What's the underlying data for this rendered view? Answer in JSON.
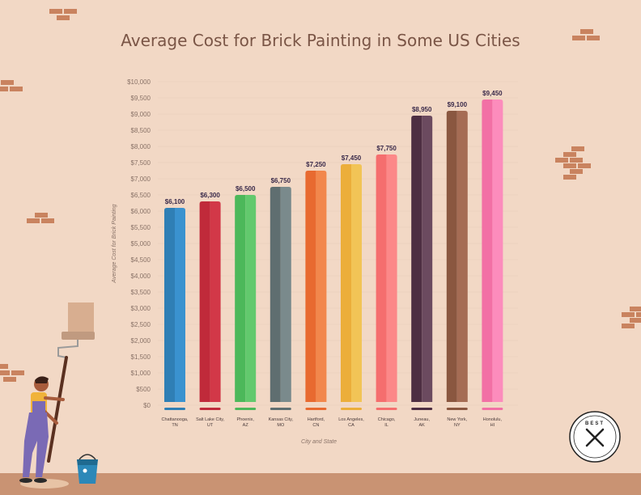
{
  "chart_data": {
    "type": "bar",
    "title": "Average Cost for Brick Painting in Some US Cities",
    "xlabel": "City and State",
    "ylabel": "Average Cost for Brick Painting",
    "ylim": [
      0,
      10000
    ],
    "ytick_step": 500,
    "categories": [
      [
        "Chattanooga,",
        "TN"
      ],
      [
        "Salt Lake City,",
        "UT"
      ],
      [
        "Phoenix,",
        "AZ"
      ],
      [
        "Kansas City,",
        "MO"
      ],
      [
        "Hartford,",
        "CN"
      ],
      [
        "Los Angeles,",
        "CA"
      ],
      [
        "Chicago,",
        "IL"
      ],
      [
        "Juneau,",
        "AK"
      ],
      [
        "New York,",
        "NY"
      ],
      [
        "Honolulu,",
        "HI"
      ]
    ],
    "values": [
      6100,
      6300,
      6500,
      6750,
      7250,
      7450,
      7750,
      8950,
      9100,
      9450
    ],
    "value_labels": [
      "$6,100",
      "$6,300",
      "$6,500",
      "$6,750",
      "$7,250",
      "$7,450",
      "$7,750",
      "$8,950",
      "$9,100",
      "$9,450"
    ],
    "colors": [
      [
        "#2f7fb5",
        "#3a92cf"
      ],
      [
        "#c02a3a",
        "#d23848"
      ],
      [
        "#4cb85a",
        "#62c96d"
      ],
      [
        "#5f6e70",
        "#7a8a8c"
      ],
      [
        "#e86a30",
        "#f2874c"
      ],
      [
        "#ecae3a",
        "#f2c456"
      ],
      [
        "#f56e6e",
        "#fc8888"
      ],
      [
        "#4d2e42",
        "#6b4a5f"
      ],
      [
        "#8a5740",
        "#a56c54"
      ],
      [
        "#f270a5",
        "#fc8cbc"
      ]
    ],
    "grid": true,
    "legend": "none"
  },
  "colors": {
    "background": "#f2d8c5",
    "title": "#7a5546",
    "axis_text": "#8a7368",
    "ground": "#c99373",
    "brick": "#c9835f"
  },
  "logo": {
    "text": "BEST",
    "icon": "paint-tools-icon"
  }
}
